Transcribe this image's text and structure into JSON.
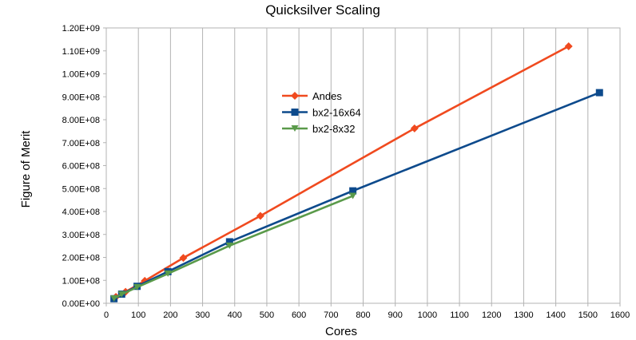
{
  "chart_data": {
    "type": "line",
    "title": "Quicksilver Scaling",
    "xlabel": "Cores",
    "ylabel": "Figure of Merit",
    "xlim": [
      0,
      1600
    ],
    "ylim": [
      0,
      1200000000
    ],
    "x_ticks": [
      0,
      100,
      200,
      300,
      400,
      500,
      600,
      700,
      800,
      900,
      1000,
      1100,
      1200,
      1300,
      1400,
      1500,
      1600
    ],
    "x_tick_labels": [
      "0",
      "100",
      "200",
      "300",
      "400",
      "500",
      "600",
      "700",
      "800",
      "900",
      "1000",
      "1100",
      "1200",
      "1300",
      "1400",
      "1500",
      "1600"
    ],
    "y_ticks": [
      0,
      100000000,
      200000000,
      300000000,
      400000000,
      500000000,
      600000000,
      700000000,
      800000000,
      900000000,
      1000000000,
      1100000000,
      1200000000
    ],
    "y_tick_labels": [
      "0.00E+00",
      "1.00E+08",
      "2.00E+08",
      "3.00E+08",
      "4.00E+08",
      "5.00E+08",
      "6.00E+08",
      "7.00E+08",
      "8.00E+08",
      "9.00E+08",
      "1.00E+09",
      "1.10E+09",
      "1.20E+09"
    ],
    "grid": "vertical",
    "legend_position": "upper-middle",
    "series": [
      {
        "name": "Andes",
        "marker": "diamond",
        "color": "#f04a1f",
        "x": [
          30,
          60,
          120,
          240,
          480,
          960,
          1440
        ],
        "y": [
          28000000,
          50000000,
          98000000,
          198000000,
          381000000,
          762000000,
          1120000000
        ]
      },
      {
        "name": "bx2-16x64",
        "marker": "square",
        "color": "#0d4a8c",
        "x": [
          24,
          48,
          96,
          192,
          384,
          768,
          1536
        ],
        "y": [
          20000000,
          40000000,
          74000000,
          138000000,
          268000000,
          490000000,
          918000000
        ]
      },
      {
        "name": "bx2-8x32",
        "marker": "triangle-down",
        "color": "#5a9a4a",
        "x": [
          24,
          48,
          96,
          192,
          384,
          768
        ],
        "y": [
          21000000,
          39000000,
          70000000,
          129000000,
          251000000,
          468000000
        ]
      }
    ]
  }
}
